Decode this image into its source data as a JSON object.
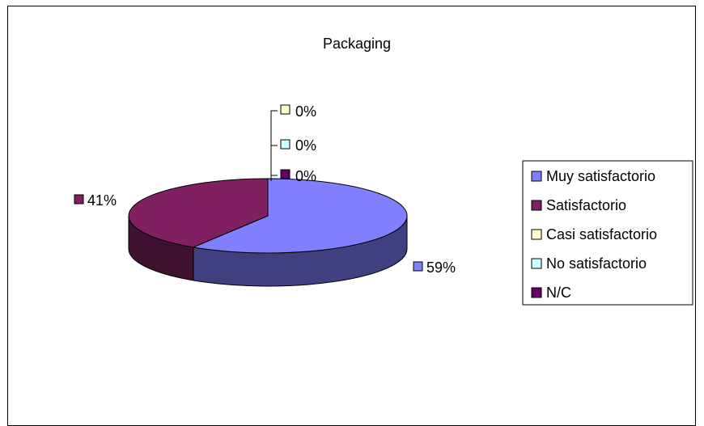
{
  "chart_data": {
    "type": "pie",
    "title": "Packaging",
    "categories": [
      "Muy satisfactorio",
      "Satisfactorio",
      "Casi satisfactorio",
      "No satisfactorio",
      "N/C"
    ],
    "values": [
      59,
      41,
      0,
      0,
      0
    ],
    "labels": [
      "59%",
      "41%",
      "0%",
      "0%",
      "0%"
    ],
    "colors": [
      "#8080FF",
      "#802060",
      "#FFFFCC",
      "#CCFFFF",
      "#660066"
    ],
    "legend_position": "right",
    "style": "3d"
  }
}
